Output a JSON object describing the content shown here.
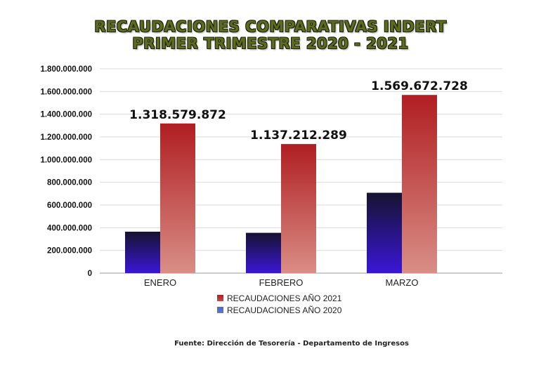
{
  "chart_data": {
    "type": "bar",
    "title": [
      "RECAUDACIONES COMPARATIVAS INDERT",
      "PRIMER TRIMESTRE 2020 - 2021"
    ],
    "categories": [
      "ENERO",
      "FEBRERO",
      "MARZO"
    ],
    "series": [
      {
        "name": "RECAUDACIONES AÑO 2020",
        "values": [
          365000000,
          355000000,
          708000000
        ],
        "color": "#3a1fc4"
      },
      {
        "name": "RECAUDACIONES AÑO 2021",
        "values": [
          1318579872,
          1137212289,
          1569672728
        ],
        "color": "#b52428"
      }
    ],
    "data_labels": [
      "1.318.579.872",
      "1.137.212.289",
      "1.569.672.728"
    ],
    "ylim": [
      0,
      1800000000
    ],
    "yticks": [
      "0",
      "200.000.000",
      "400.000.000",
      "600.000.000",
      "800.000.000",
      "1.000.000.000",
      "1.200.000.000",
      "1.400.000.000",
      "1.600.000.000",
      "1.800.000.000"
    ],
    "legend": [
      "RECAUDACIONES AÑO 2021",
      "RECAUDACIONES AÑO 2020"
    ],
    "legend_position": "bottom",
    "grid": true
  },
  "source_note": "Fuente: Dirección de Tesorería - Departamento de Ingresos"
}
